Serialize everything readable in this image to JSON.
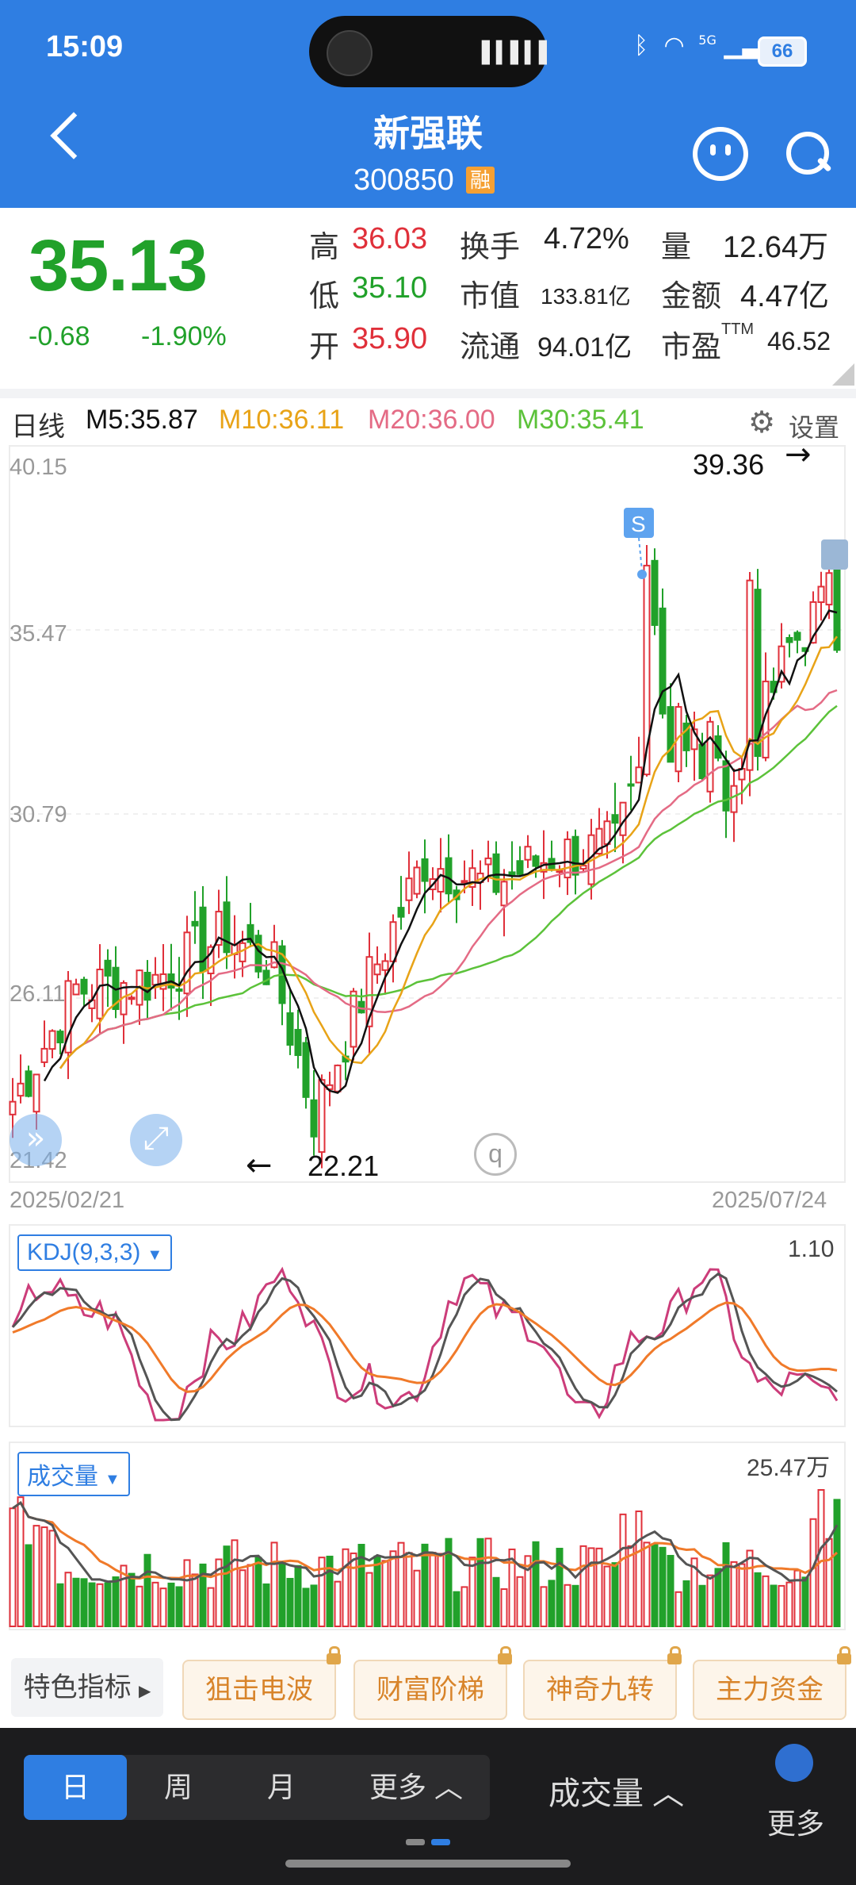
{
  "status": {
    "time": "15:09",
    "battery": "66",
    "signal": "5G",
    "icons": [
      "bluetooth-icon",
      "wifi-icon",
      "signal-icon",
      "battery-icon"
    ]
  },
  "header": {
    "title": "新强联",
    "code": "300850",
    "badge": "融",
    "icons": [
      "back-arrow-icon",
      "robot-assistant-icon",
      "search-icon"
    ]
  },
  "quote": {
    "price": "35.13",
    "change": "-0.68",
    "change_pct": "-1.90%",
    "high_label": "高",
    "high": "36.03",
    "low_label": "低",
    "low": "35.10",
    "open_label": "开",
    "open": "35.90",
    "turnover_label": "换手",
    "turnover": "4.72%",
    "mcap_label": "市值",
    "mcap": "133.81亿",
    "float_label": "流通",
    "float": "94.01亿",
    "vol_label": "量",
    "vol": "12.64万",
    "amount_label": "金额",
    "amount": "4.47亿",
    "pe_label": "市盈",
    "pe_sup": "TTM",
    "pe": "46.52"
  },
  "ma_legend": {
    "period": "日线",
    "m5": "M5:35.87",
    "m10": "M10:36.11",
    "m20": "M20:36.00",
    "m30": "M30:35.41",
    "settings": "设置"
  },
  "colors": {
    "red": "#e0303a",
    "green": "#21a12a",
    "m5": "#111111",
    "m10": "#e8a317",
    "m20": "#e46b85",
    "m30": "#5cc23a",
    "k": "#555555",
    "d": "#f07a2a",
    "j": "#cc3d7a",
    "accent": "#2f7ee2"
  },
  "chart_data": [
    {
      "type": "candlestick",
      "title": "",
      "y_ticks": [
        "40.15",
        "35.47",
        "30.79",
        "26.11",
        "21.42"
      ],
      "ylim": [
        21.42,
        40.15
      ],
      "x_labels": [
        "2025/02/21",
        "2025/07/24"
      ],
      "annotations": {
        "max": "39.36",
        "min": "22.21",
        "marker": "S",
        "max_arrow": "→",
        "min_arrow": "←"
      },
      "grid": true
    },
    {
      "type": "line",
      "title": "KDJ(9,3,3)",
      "value": "1.10",
      "series": [
        "K",
        "D",
        "J"
      ]
    },
    {
      "type": "bar",
      "title": "成交量",
      "value": "25.47万"
    }
  ],
  "feature_row": {
    "label": "特色指标",
    "buttons": [
      "狙击电波",
      "财富阶梯",
      "神奇九转",
      "主力资金"
    ]
  },
  "bottom_bar": {
    "periods": [
      "日",
      "周",
      "月",
      "更多"
    ],
    "volume": "成交量",
    "more": "更多"
  }
}
